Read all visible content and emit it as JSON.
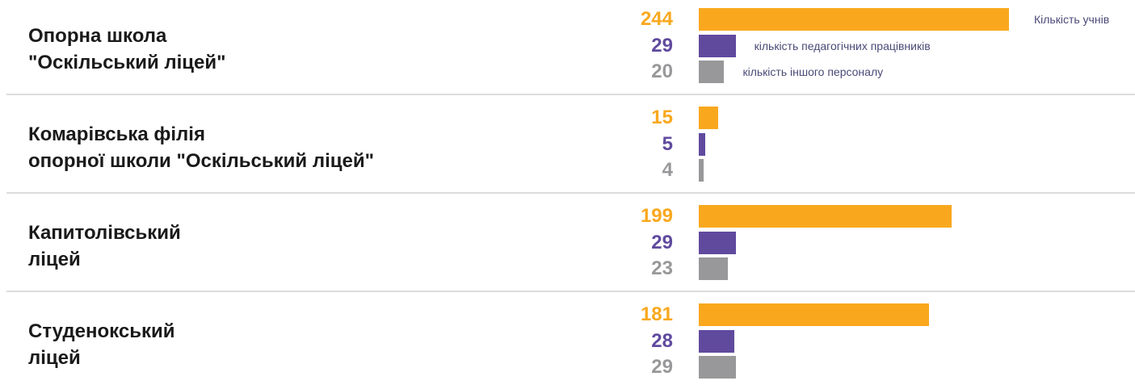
{
  "chart_data": {
    "type": "bar",
    "orientation": "horizontal",
    "categories": [
      "Опорна школа\n\"Оскільський ліцей\"",
      "Комарівська філія\nопорної школи \"Оскільський ліцей\"",
      "Капитолівський\nліцей",
      "Студенокський\nліцей"
    ],
    "series": [
      {
        "name": "Кількість учнів",
        "color": "#f9a81e",
        "values": [
          244,
          15,
          199,
          181
        ]
      },
      {
        "name": "кількість педагогічних працівників",
        "color": "#604a9e",
        "values": [
          29,
          5,
          29,
          28
        ]
      },
      {
        "name": "кількість іншого персоналу",
        "color": "#98989a",
        "values": [
          20,
          4,
          23,
          29
        ]
      }
    ]
  }
}
